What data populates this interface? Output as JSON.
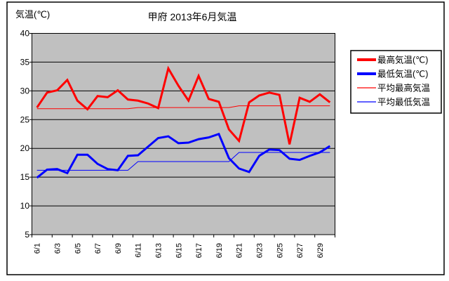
{
  "title": "甲府 2013年6月気温",
  "y_axis_title": "気温(℃)",
  "colors": {
    "max_line": "#ff0000",
    "min_line": "#0000ff",
    "avg_max_line": "#ff0000",
    "avg_min_line": "#0000ff",
    "plot_background": "#c0c0c0",
    "frame": "#000000"
  },
  "legend": {
    "items": [
      {
        "label": "最高気温(℃)",
        "color": "#ff0000",
        "thick": true
      },
      {
        "label": "最低気温(℃)",
        "color": "#0000ff",
        "thick": true
      },
      {
        "label": "平均最高気温",
        "color": "#ff0000",
        "thick": false
      },
      {
        "label": "平均最低気温",
        "color": "#0000ff",
        "thick": false
      }
    ]
  },
  "chart_data": {
    "type": "line",
    "title": "甲府 2013年6月気温",
    "ylabel": "気温(℃)",
    "ylim": [
      5,
      40
    ],
    "y_ticks": [
      40,
      35,
      30,
      25,
      20,
      15,
      10,
      5
    ],
    "grid": "horizontal",
    "legend_position": "right",
    "plot_bg": "#c0c0c0",
    "categories": [
      "6/1",
      "6/2",
      "6/3",
      "6/4",
      "6/5",
      "6/6",
      "6/7",
      "6/8",
      "6/9",
      "6/10",
      "6/11",
      "6/12",
      "6/13",
      "6/14",
      "6/15",
      "6/16",
      "6/17",
      "6/18",
      "6/19",
      "6/20",
      "6/21",
      "6/22",
      "6/23",
      "6/24",
      "6/25",
      "6/26",
      "6/27",
      "6/28",
      "6/29",
      "6/30"
    ],
    "x_tick_labels": [
      "6/1",
      "6/3",
      "6/5",
      "6/7",
      "6/9",
      "6/11",
      "6/13",
      "6/15",
      "6/17",
      "6/19",
      "6/21",
      "6/23",
      "6/25",
      "6/27",
      "6/29"
    ],
    "series": [
      {
        "name": "最高気温(℃)",
        "color": "#ff0000",
        "width": 3,
        "values": [
          27.1,
          29.7,
          30.1,
          31.9,
          28.3,
          26.8,
          29.1,
          28.9,
          30.1,
          28.5,
          28.3,
          27.8,
          27.0,
          33.9,
          30.9,
          28.3,
          32.6,
          28.6,
          28.1,
          23.3,
          21.3,
          28.0,
          29.2,
          29.7,
          29.3,
          20.7,
          28.8,
          28.1,
          29.4,
          28.0
        ]
      },
      {
        "name": "最低気温(℃)",
        "color": "#0000ff",
        "width": 3,
        "values": [
          14.9,
          16.3,
          16.4,
          15.7,
          18.9,
          18.9,
          17.3,
          16.4,
          16.2,
          18.7,
          18.8,
          20.3,
          21.8,
          22.1,
          20.9,
          21.0,
          21.6,
          21.9,
          22.5,
          18.3,
          16.5,
          15.9,
          18.7,
          19.8,
          19.7,
          18.2,
          18.0,
          18.7,
          19.3,
          20.4
        ]
      },
      {
        "name": "平均最高気温",
        "color": "#ff0000",
        "width": 1,
        "values": [
          26.9,
          26.9,
          26.9,
          26.9,
          26.9,
          26.9,
          26.9,
          26.9,
          26.9,
          26.9,
          27.1,
          27.1,
          27.1,
          27.1,
          27.1,
          27.1,
          27.1,
          27.1,
          27.1,
          27.1,
          27.4,
          27.4,
          27.4,
          27.4,
          27.4,
          27.4,
          27.4,
          27.4,
          27.4,
          27.4
        ]
      },
      {
        "name": "平均最低気温",
        "color": "#0000ff",
        "width": 1,
        "values": [
          16.2,
          16.2,
          16.2,
          16.2,
          16.2,
          16.2,
          16.2,
          16.2,
          16.2,
          16.2,
          17.7,
          17.7,
          17.7,
          17.7,
          17.7,
          17.7,
          17.7,
          17.7,
          17.7,
          17.7,
          19.3,
          19.3,
          19.3,
          19.3,
          19.3,
          19.3,
          19.3,
          19.3,
          19.3,
          19.3
        ]
      }
    ]
  }
}
